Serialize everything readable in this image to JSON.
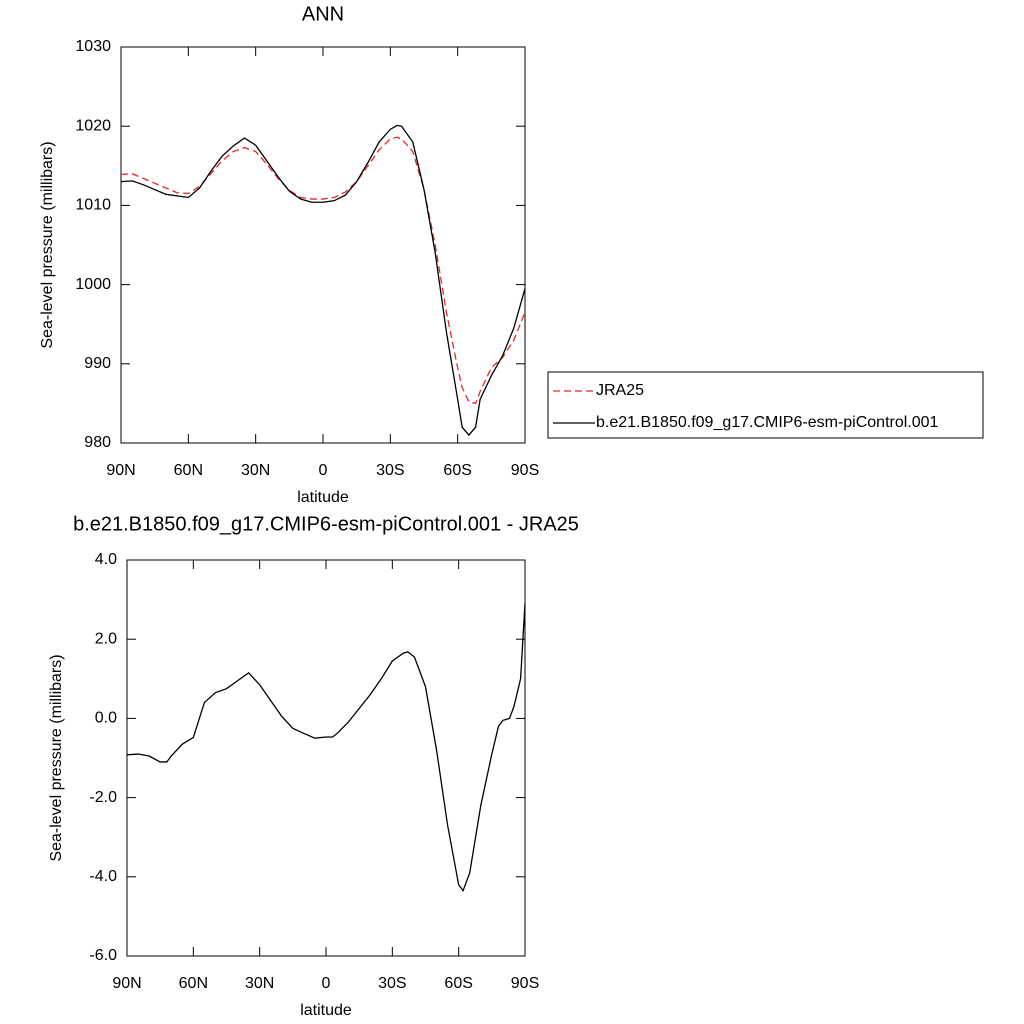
{
  "chart_data": [
    {
      "type": "line",
      "title": "ANN",
      "xlabel": "latitude",
      "ylabel": "Sea-level pressure (millibars)",
      "x": [
        90,
        85,
        80,
        75,
        70,
        65,
        60,
        55,
        50,
        45,
        40,
        35,
        30,
        25,
        20,
        15,
        10,
        5,
        0,
        -5,
        -10,
        -15,
        -20,
        -25,
        -30,
        -33,
        -35,
        -40,
        -45,
        -50,
        -55,
        -60,
        -62,
        -65,
        -68,
        -70,
        -75,
        -80,
        -85,
        -90
      ],
      "series": [
        {
          "name": "JRA25",
          "color": "#e8262a",
          "dash": true,
          "values": [
            1013.9,
            1014.0,
            1013.4,
            1012.8,
            1012.2,
            1011.6,
            1011.5,
            1012.4,
            1014.0,
            1015.6,
            1016.8,
            1017.3,
            1016.8,
            1015.2,
            1013.4,
            1011.9,
            1011.0,
            1010.8,
            1010.8,
            1011.0,
            1011.7,
            1013.0,
            1015.0,
            1017.0,
            1018.4,
            1018.6,
            1018.4,
            1016.8,
            1012.0,
            1005.0,
            996.5,
            989.5,
            987.0,
            985.2,
            985.0,
            986.5,
            989.5,
            990.8,
            993.0,
            996.5
          ]
        },
        {
          "name": "b.e21.B1850.f09_g17.CMIP6-esm-piControl.001",
          "color": "#000000",
          "dash": false,
          "values": [
            1013.0,
            1013.1,
            1012.6,
            1012.0,
            1011.4,
            1011.2,
            1011.0,
            1012.2,
            1014.3,
            1016.2,
            1017.5,
            1018.5,
            1017.6,
            1015.6,
            1013.6,
            1011.8,
            1010.8,
            1010.4,
            1010.4,
            1010.6,
            1011.3,
            1013.0,
            1015.4,
            1018.0,
            1019.6,
            1020.1,
            1020.0,
            1018.0,
            1012.0,
            1004.0,
            994.0,
            985.5,
            982.0,
            981.0,
            982.0,
            985.5,
            988.5,
            991.0,
            994.5,
            999.5
          ]
        }
      ],
      "xlim": [
        90,
        -90
      ],
      "xticks": [
        {
          "value": 90,
          "label": "90N"
        },
        {
          "value": 60,
          "label": "60N"
        },
        {
          "value": 30,
          "label": "30N"
        },
        0,
        {
          "value": -30,
          "label": "30S"
        },
        {
          "value": -60,
          "label": "60S"
        },
        {
          "value": -90,
          "label": "90S"
        }
      ],
      "ylim": [
        980,
        1030
      ],
      "yticks": [
        980,
        990,
        1000,
        1010,
        1020,
        1030
      ],
      "grid": false,
      "legend": "right"
    },
    {
      "type": "line",
      "title": "b.e21.B1850.f09_g17.CMIP6-esm-piControl.001 - JRA25",
      "xlabel": "latitude",
      "ylabel": "Sea-level pressure (millibars)",
      "x": [
        90,
        85,
        80,
        75,
        72,
        70,
        65,
        60,
        55,
        50,
        45,
        40,
        35,
        30,
        25,
        20,
        15,
        10,
        5,
        0,
        -3,
        -5,
        -10,
        -15,
        -20,
        -25,
        -30,
        -35,
        -37,
        -40,
        -45,
        -50,
        -55,
        -60,
        -62,
        -65,
        -70,
        -75,
        -78,
        -80,
        -83,
        -85,
        -88,
        -90
      ],
      "series": [
        {
          "color": "#000000",
          "dash": false,
          "values": [
            -0.92,
            -0.9,
            -0.95,
            -1.1,
            -1.1,
            -0.95,
            -0.65,
            -0.48,
            0.4,
            0.65,
            0.75,
            0.95,
            1.15,
            0.85,
            0.45,
            0.05,
            -0.25,
            -0.38,
            -0.5,
            -0.47,
            -0.47,
            -0.38,
            -0.1,
            0.25,
            0.6,
            1.0,
            1.45,
            1.65,
            1.68,
            1.55,
            0.8,
            -0.8,
            -2.7,
            -4.2,
            -4.35,
            -3.9,
            -2.2,
            -0.9,
            -0.2,
            -0.05,
            0.0,
            0.3,
            1.0,
            2.9
          ]
        }
      ],
      "xlim": [
        90,
        -90
      ],
      "xticks": [
        {
          "value": 90,
          "label": "90N"
        },
        {
          "value": 60,
          "label": "60N"
        },
        {
          "value": 30,
          "label": "30N"
        },
        0,
        {
          "value": -30,
          "label": "30S"
        },
        {
          "value": -60,
          "label": "60S"
        },
        {
          "value": -90,
          "label": "90S"
        }
      ],
      "ylim": [
        -6,
        4
      ],
      "yticks": [
        {
          "value": -6,
          "label": "-6.0"
        },
        {
          "value": -4,
          "label": "-4.0"
        },
        {
          "value": -2,
          "label": "-2.0"
        },
        {
          "value": 0,
          "label": "0.0"
        },
        {
          "value": 2,
          "label": "2.0"
        },
        {
          "value": 4,
          "label": "4.0"
        }
      ],
      "grid": false
    }
  ]
}
